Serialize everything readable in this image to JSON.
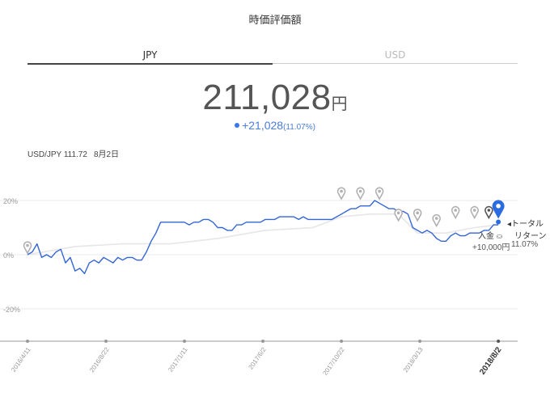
{
  "header": {
    "title": "時価評価額"
  },
  "tabs": [
    {
      "label": "JPY"
    },
    {
      "label": "USD"
    }
  ],
  "summary": {
    "total_value": "211,028",
    "total_unit": "円",
    "change_value": "+21,028",
    "change_pct": "(11.07%)"
  },
  "fx": {
    "pair": "USD/JPY 111.72",
    "date": "8月2日"
  },
  "annotations": {
    "total_return_label_1": "トータル",
    "total_return_label_2": "リターン",
    "total_return_pct": "11.07%",
    "deposit_label": "入金",
    "deposit_amount": "+10,000円"
  },
  "colors": {
    "series_main": "#3366d6",
    "series_compare": "#e6e6e6",
    "marker_gray": "#b0b0b0",
    "marker_dark": "#555555",
    "marker_blue": "#2b6de0"
  },
  "chart_data": {
    "type": "line",
    "ylim": [
      -30,
      30
    ],
    "yticks": [
      20,
      0,
      -20
    ],
    "ytick_labels": [
      "20%",
      "0%",
      "-20%"
    ],
    "xtick_labels": [
      "2016/4/11",
      "2016/8/22",
      "2017/1/11",
      "2017/6/2",
      "2017/10/22",
      "2018/3/13",
      "2018/8/2"
    ],
    "xlim": [
      0,
      100
    ],
    "xtick_positions": [
      0,
      16.5,
      33,
      49.5,
      66,
      82.5,
      99
    ],
    "series": [
      {
        "role": "portfolio",
        "x": [
          0,
          1,
          2,
          3,
          4,
          5,
          6,
          7,
          8,
          9,
          10,
          11,
          12,
          13,
          14,
          15,
          16,
          17,
          18,
          19,
          20,
          21,
          22,
          23,
          24,
          25,
          26,
          27,
          28,
          29,
          30,
          31,
          32,
          33,
          34,
          35,
          36,
          37,
          38,
          39,
          40,
          41,
          42,
          43,
          44,
          45,
          46,
          47,
          48,
          49,
          50,
          51,
          52,
          53,
          54,
          55,
          56,
          57,
          58,
          59,
          60,
          61,
          62,
          63,
          64,
          65,
          66,
          67,
          68,
          69,
          70,
          71,
          72,
          73,
          74,
          75,
          76,
          77,
          78,
          79,
          80,
          81,
          82,
          83,
          84,
          85,
          86,
          87,
          88,
          89,
          90,
          91,
          92,
          93,
          94,
          95,
          96,
          97,
          98,
          99
        ],
        "values": [
          0,
          1,
          4,
          -1,
          0,
          -1,
          1,
          2,
          -3,
          -1,
          -6,
          -5,
          -7,
          -3,
          -2,
          -3,
          -1,
          -2,
          -3,
          -1,
          -2,
          -1,
          -1,
          -2,
          -2,
          1,
          5,
          8,
          12,
          12,
          12,
          12,
          12,
          12,
          11,
          12,
          12,
          13,
          13,
          12,
          10,
          10,
          9,
          9,
          11,
          11,
          12,
          12,
          12,
          12,
          13,
          13,
          13,
          14,
          14,
          14,
          14,
          13,
          14,
          13,
          13,
          13,
          13,
          13,
          13,
          14,
          15,
          16,
          17,
          17,
          18,
          18,
          18,
          20,
          19,
          18,
          17,
          17,
          16,
          16,
          15,
          10,
          9,
          8,
          9,
          8,
          6,
          5,
          5,
          7,
          8,
          7,
          7,
          8,
          8,
          8,
          9,
          9,
          11,
          11
        ]
      },
      {
        "role": "benchmark",
        "x": [
          0,
          10,
          20,
          30,
          40,
          50,
          60,
          66,
          72,
          78,
          82,
          88,
          94,
          99
        ],
        "values": [
          0,
          3,
          4,
          4,
          6,
          9,
          10,
          14,
          15,
          15,
          8,
          8,
          10,
          11
        ]
      }
    ],
    "markers": [
      {
        "x": 0,
        "value": 0,
        "style": "gray"
      },
      {
        "x": 66,
        "value": 20,
        "style": "gray"
      },
      {
        "x": 70,
        "value": 20,
        "style": "gray"
      },
      {
        "x": 74,
        "value": 20,
        "style": "gray"
      },
      {
        "x": 78,
        "value": 12,
        "style": "gray"
      },
      {
        "x": 82,
        "value": 12,
        "style": "gray"
      },
      {
        "x": 86,
        "value": 10,
        "style": "gray"
      },
      {
        "x": 90,
        "value": 13,
        "style": "gray"
      },
      {
        "x": 94,
        "value": 13,
        "style": "gray"
      },
      {
        "x": 97,
        "value": 13,
        "style": "dark"
      },
      {
        "x": 99,
        "value": 13,
        "style": "blue"
      }
    ]
  }
}
